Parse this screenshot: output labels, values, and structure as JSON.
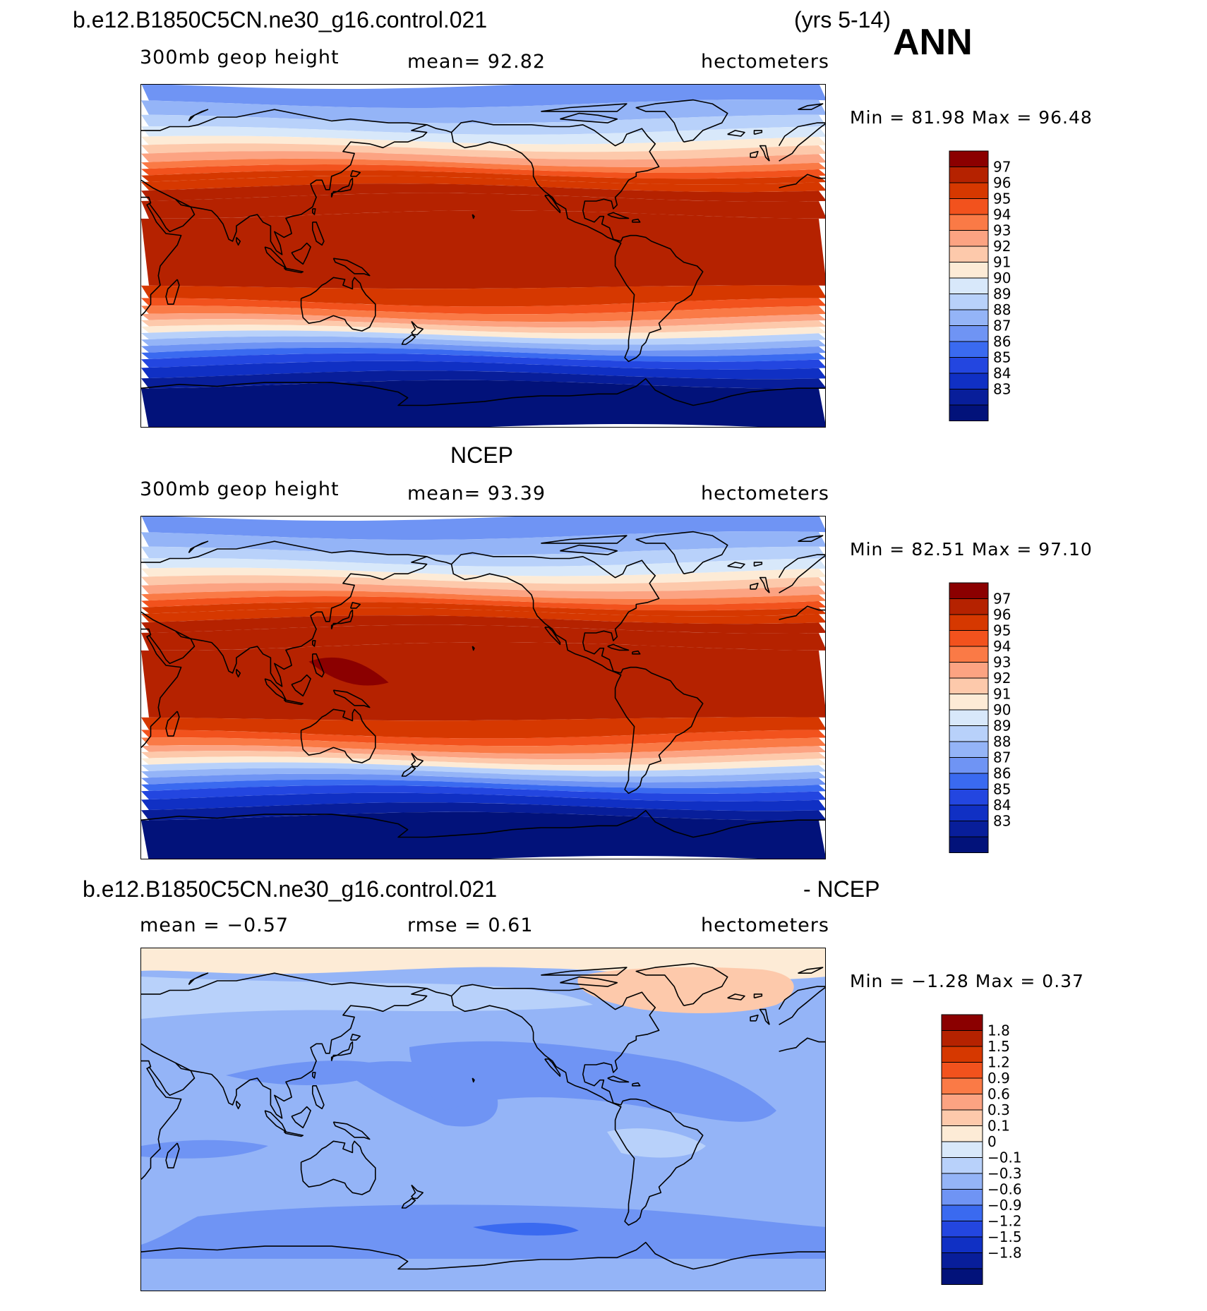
{
  "header": {
    "case_name": "b.e12.B1850C5CN.ne30_g16.control.021",
    "years": "(yrs 5-14)",
    "season": "ANN"
  },
  "panels": [
    {
      "title": "",
      "left_label": "300mb  geop  height",
      "center_label": "mean=   92.82",
      "right_label": "hectometers",
      "minmax": "Min  =   81.98  Max  =   96.48",
      "colorbar_labels": [
        "97",
        "96",
        "95",
        "94",
        "93",
        "92",
        "91",
        "90",
        "89",
        "88",
        "87",
        "86",
        "85",
        "84",
        "83"
      ]
    },
    {
      "title": "NCEP",
      "left_label": "300mb  geop  height",
      "center_label": "mean=   93.39",
      "right_label": "hectometers",
      "minmax": "Min  =   82.51  Max  =   97.10",
      "colorbar_labels": [
        "97",
        "96",
        "95",
        "94",
        "93",
        "92",
        "91",
        "90",
        "89",
        "88",
        "87",
        "86",
        "85",
        "84",
        "83"
      ]
    },
    {
      "title_left": "b.e12.B1850C5CN.ne30_g16.control.021",
      "title_right": "- NCEP",
      "left_label": "mean  =   −0.57",
      "center_label": "rmse  =     0.61",
      "right_label": "hectometers",
      "minmax": "Min  =   −1.28  Max  =     0.37",
      "colorbar_labels": [
        "1.8",
        "1.5",
        "1.2",
        "0.9",
        "0.6",
        "0.3",
        "0.1",
        "0",
        "−0.1",
        "−0.3",
        "−0.6",
        "−0.9",
        "−1.2",
        "−1.5",
        "−1.8"
      ]
    }
  ],
  "palette": [
    "#8b0000",
    "#b52200",
    "#d63800",
    "#f2521d",
    "#fa7a46",
    "#fca382",
    "#fdc9ab",
    "#fdebd6",
    "#d8e8fa",
    "#b8d1fa",
    "#94b4f7",
    "#6f94f4",
    "#3a6af0",
    "#2346e0",
    "#1030c4",
    "#081e9a",
    "#02127a"
  ]
}
